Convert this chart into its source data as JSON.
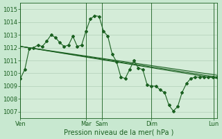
{
  "xlabel": "Pression niveau de la mer( hPa )",
  "background_color": "#c8e8d0",
  "plot_bg_color": "#d4ecd8",
  "grid_color": "#a8c8b0",
  "line_color": "#1a6020",
  "ylim": [
    1006.5,
    1015.5
  ],
  "yticks": [
    1007,
    1008,
    1009,
    1010,
    1011,
    1012,
    1013,
    1014,
    1015
  ],
  "xlim": [
    0,
    270
  ],
  "x_day_labels": [
    {
      "label": "Ven",
      "x": 0
    },
    {
      "label": "Mar",
      "x": 90
    },
    {
      "label": "Sam",
      "x": 112
    },
    {
      "label": "Dim",
      "x": 180
    },
    {
      "label": "Lun",
      "x": 265
    }
  ],
  "vlines": [
    0,
    90,
    112,
    180,
    265
  ],
  "series1_x": [
    0,
    6,
    12,
    18,
    24,
    30,
    36,
    42,
    48,
    54,
    60,
    66,
    72,
    78,
    84,
    90,
    96,
    102,
    108,
    114,
    120,
    126,
    132,
    138,
    144,
    150,
    156,
    162,
    168,
    174,
    180,
    186,
    192,
    198,
    204,
    210,
    216,
    222,
    228,
    234,
    240,
    246,
    252,
    258,
    264,
    270
  ],
  "series1_y": [
    1009.6,
    1010.3,
    1011.9,
    1012.0,
    1012.2,
    1012.1,
    1012.5,
    1013.0,
    1012.8,
    1012.4,
    1012.1,
    1012.2,
    1012.9,
    1012.1,
    1012.2,
    1013.3,
    1014.25,
    1014.5,
    1014.45,
    1013.3,
    1012.9,
    1011.5,
    1010.9,
    1009.7,
    1009.6,
    1010.3,
    1011.0,
    1010.4,
    1010.3,
    1009.1,
    1009.0,
    1009.0,
    1008.7,
    1008.5,
    1007.5,
    1007.05,
    1007.4,
    1008.5,
    1009.2,
    1009.6,
    1009.7,
    1009.7,
    1009.7,
    1009.7,
    1009.7,
    1009.7
  ],
  "series2_x": [
    0,
    270
  ],
  "series2_y": [
    1012.1,
    1009.6
  ],
  "series3_x": [
    0,
    270
  ],
  "series3_y": [
    1012.1,
    1009.7
  ],
  "series4_x": [
    0,
    270
  ],
  "series4_y": [
    1012.1,
    1009.85
  ],
  "label_fontsize": 6,
  "xlabel_fontsize": 7
}
